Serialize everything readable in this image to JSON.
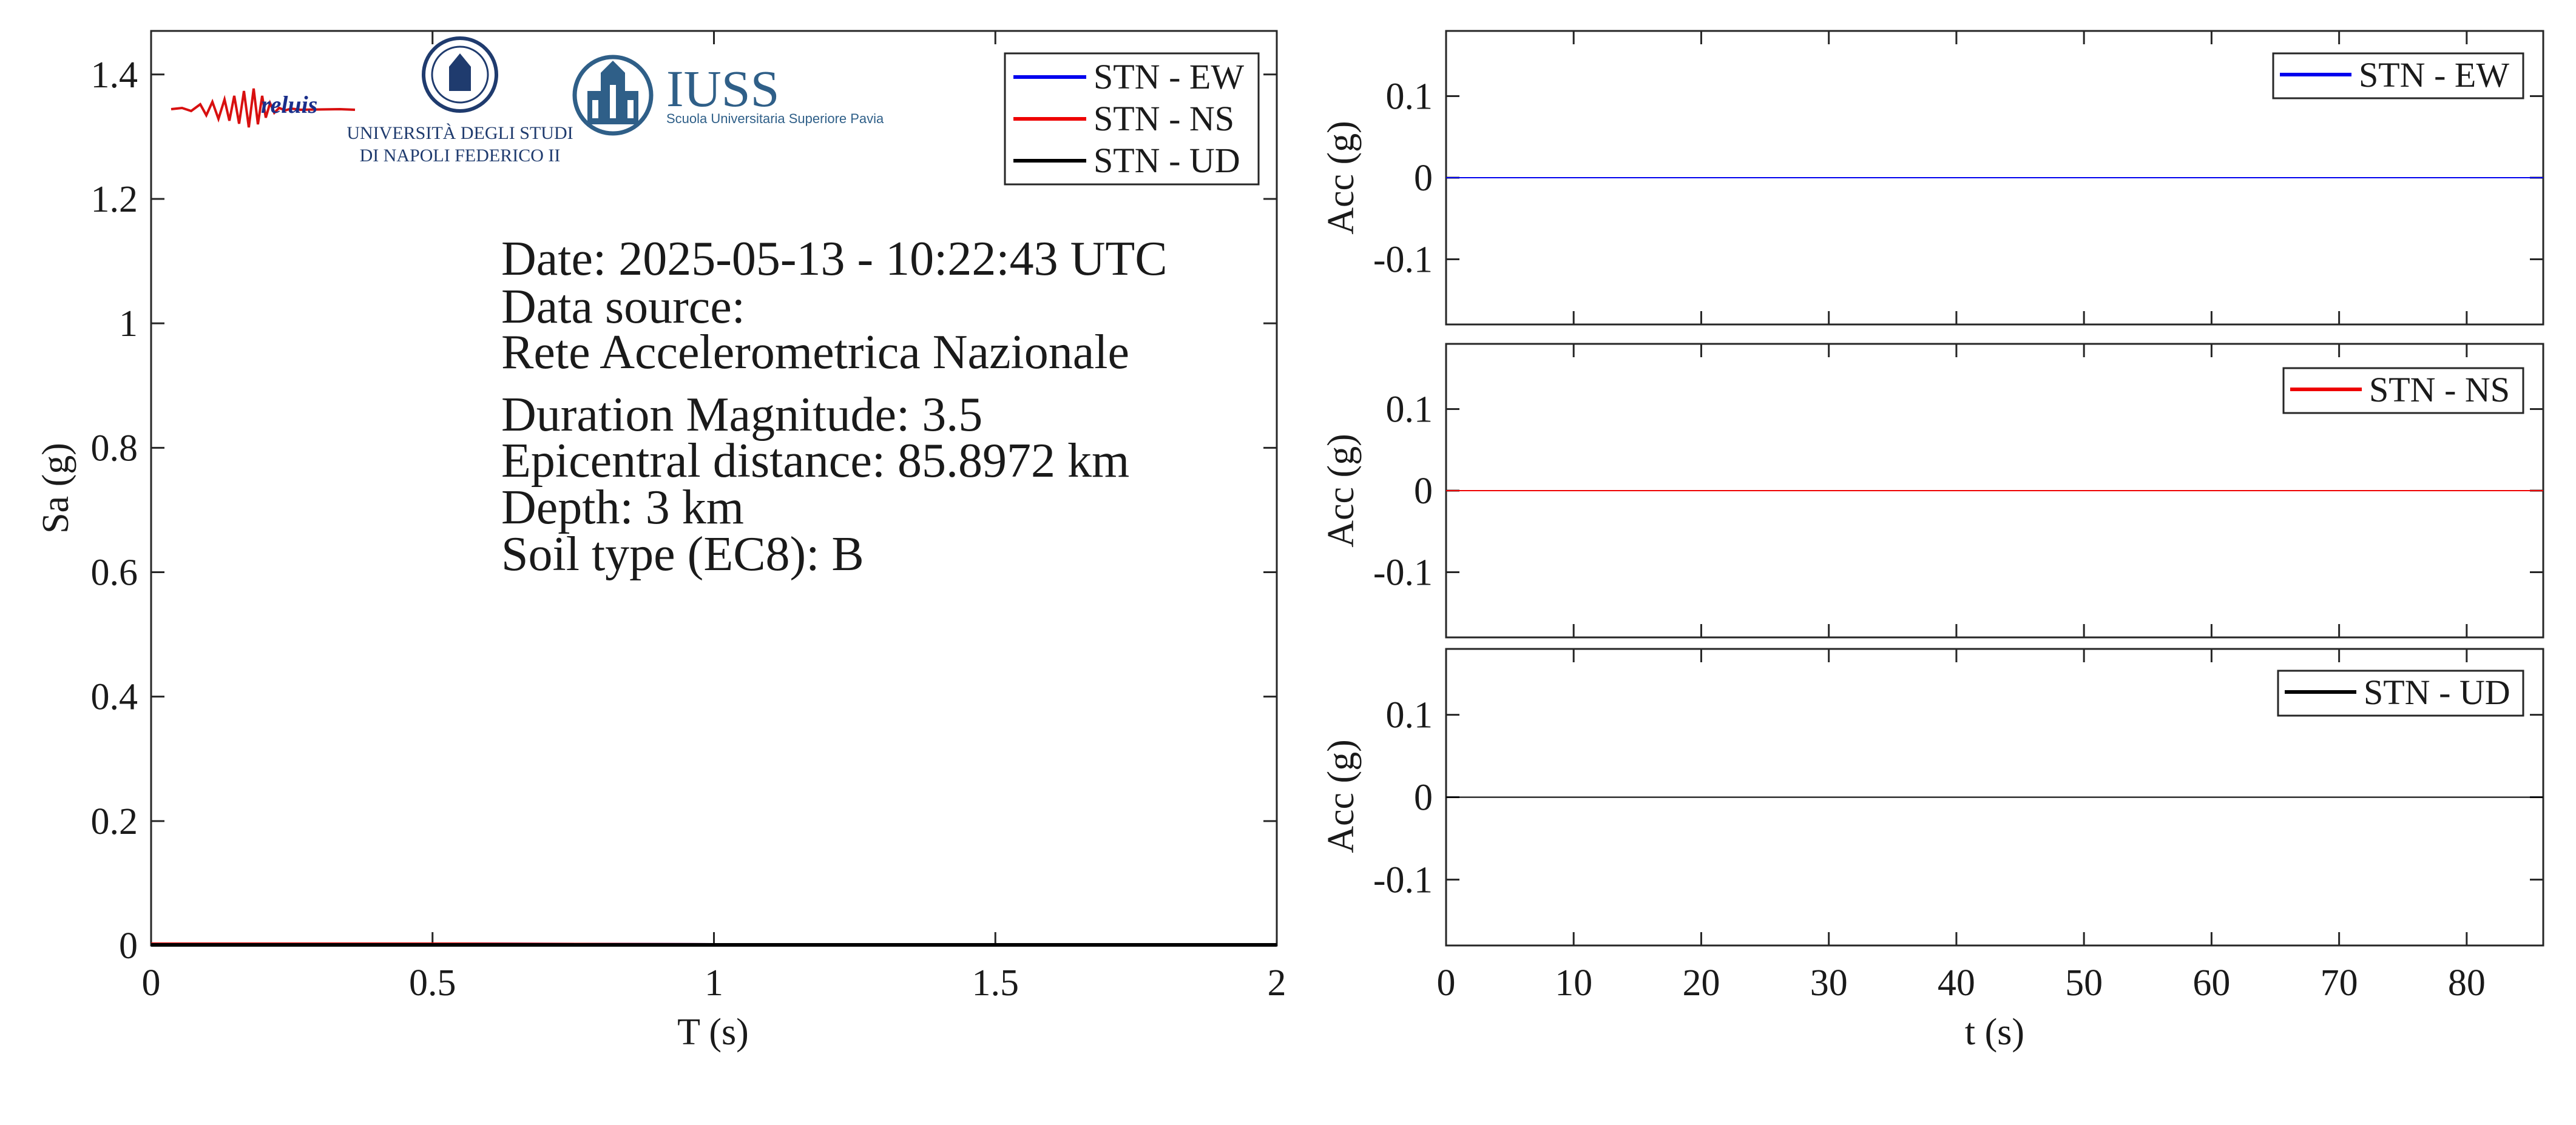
{
  "logos": {
    "reluis": "reluis",
    "unina_line1": "UNIVERSITÀ DEGLI STUDI",
    "unina_line2": "DI NAPOLI FEDERICO II",
    "iuss_title": "IUSS",
    "iuss_subtitle": "Scuola Universitaria Superiore Pavia"
  },
  "info_text": {
    "date": "Date: 2025-05-13 - 10:22:43 UTC",
    "source_label": "Data source:",
    "source_name": "Rete Accelerometrica Nazionale",
    "magnitude": "Duration Magnitude: 3.5",
    "distance": "Epicentral distance: 85.8972 km",
    "depth": "Depth: 3 km",
    "soil": "Soil type (EC8): B"
  },
  "colors": {
    "ew": "#0000ee",
    "ns": "#ee0000",
    "ud": "#000000",
    "axis": "#262626"
  },
  "chart_data": [
    {
      "type": "line",
      "id": "spectrum",
      "xlabel": "T (s)",
      "ylabel": "Sa (g)",
      "xlim": [
        0,
        2
      ],
      "ylim": [
        0,
        1.47
      ],
      "xticks": [
        0,
        0.5,
        1,
        1.5,
        2
      ],
      "xtick_labels": [
        "0",
        "0.5",
        "1",
        "1.5",
        "2"
      ],
      "yticks": [
        0,
        0.2,
        0.4,
        0.6,
        0.8,
        1,
        1.2,
        1.4
      ],
      "ytick_labels": [
        "0",
        "0.2",
        "0.4",
        "0.6",
        "0.8",
        "1",
        "1.2",
        "1.4"
      ],
      "legend_position": "top-right",
      "series": [
        {
          "name": "STN - EW",
          "color": "#0000ee",
          "x": [
            0,
            0.5,
            1,
            1.5,
            2
          ],
          "y": [
            0.002,
            0.002,
            0.001,
            0.001,
            0.001
          ]
        },
        {
          "name": "STN - NS",
          "color": "#ee0000",
          "x": [
            0,
            0.5,
            1,
            1.5,
            2
          ],
          "y": [
            0.002,
            0.002,
            0.001,
            0.001,
            0.001
          ]
        },
        {
          "name": "STN - UD",
          "color": "#000000",
          "x": [
            0,
            0.5,
            1,
            1.5,
            2
          ],
          "y": [
            0.001,
            0.001,
            0.001,
            0.001,
            0.001
          ]
        }
      ]
    },
    {
      "type": "line",
      "id": "acc-ew",
      "ylabel": "Acc (g)",
      "xlim": [
        0,
        86
      ],
      "ylim": [
        -0.18,
        0.18
      ],
      "yticks": [
        -0.1,
        0,
        0.1
      ],
      "ytick_labels": [
        "-0.1",
        "0",
        "0.1"
      ],
      "legend_position": "top-right",
      "series": [
        {
          "name": "STN - EW",
          "color": "#0000ee",
          "x": [
            0,
            86
          ],
          "y": [
            0,
            0
          ]
        }
      ]
    },
    {
      "type": "line",
      "id": "acc-ns",
      "ylabel": "Acc (g)",
      "xlim": [
        0,
        86
      ],
      "ylim": [
        -0.18,
        0.18
      ],
      "yticks": [
        -0.1,
        0,
        0.1
      ],
      "ytick_labels": [
        "-0.1",
        "0",
        "0.1"
      ],
      "legend_position": "top-right",
      "series": [
        {
          "name": "STN - NS",
          "color": "#ee0000",
          "x": [
            0,
            86
          ],
          "y": [
            0,
            0
          ]
        }
      ]
    },
    {
      "type": "line",
      "id": "acc-ud",
      "xlabel": "t (s)",
      "ylabel": "Acc (g)",
      "xlim": [
        0,
        86
      ],
      "ylim": [
        -0.18,
        0.18
      ],
      "xticks": [
        0,
        10,
        20,
        30,
        40,
        50,
        60,
        70,
        80
      ],
      "xtick_labels": [
        "0",
        "10",
        "20",
        "30",
        "40",
        "50",
        "60",
        "70",
        "80"
      ],
      "yticks": [
        -0.1,
        0,
        0.1
      ],
      "ytick_labels": [
        "-0.1",
        "0",
        "0.1"
      ],
      "legend_position": "top-right",
      "series": [
        {
          "name": "STN - UD",
          "color": "#000000",
          "x": [
            0,
            86
          ],
          "y": [
            0,
            0
          ]
        }
      ]
    }
  ]
}
